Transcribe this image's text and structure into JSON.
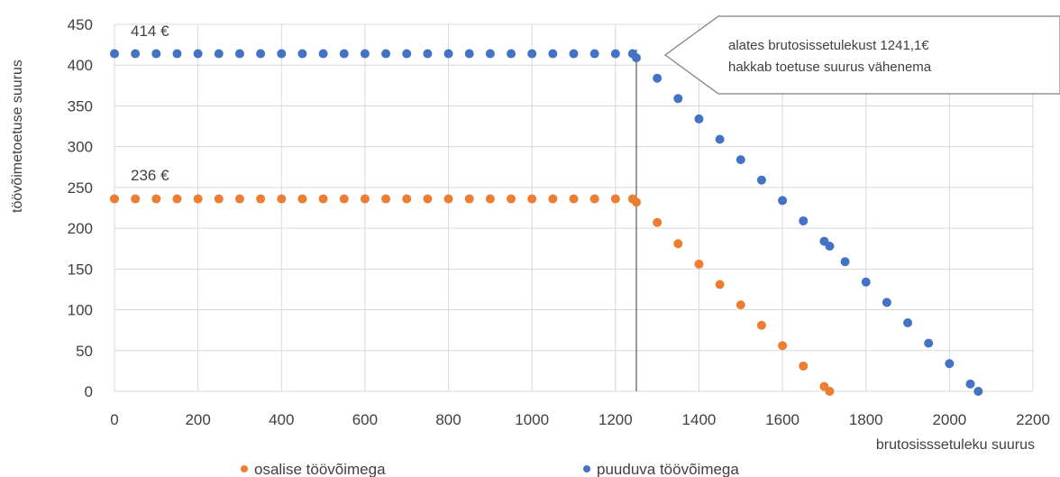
{
  "chart_data": {
    "type": "scatter",
    "xlabel": "brutosisssetuleku suurus",
    "ylabel": "töövõimetoetuse suurus",
    "xlim": [
      0,
      2200
    ],
    "ylim": [
      0,
      450
    ],
    "xticks": [
      0,
      200,
      400,
      600,
      800,
      1000,
      1200,
      1400,
      1600,
      1800,
      2000,
      2200
    ],
    "yticks": [
      0,
      50,
      100,
      150,
      200,
      250,
      300,
      350,
      400,
      450
    ],
    "grid": true,
    "legend_position": "bottom",
    "reference_line_x": 1250,
    "annotations": {
      "label_414": "414 €",
      "label_236": "236 €",
      "callout": [
        "alates brutosissetulekust 1241,1€",
        "hakkab toetuse suurus vähenema"
      ]
    },
    "series": [
      {
        "name": "osalise töövõimega",
        "color": "#ed7d31",
        "points": [
          [
            0,
            236
          ],
          [
            50,
            236
          ],
          [
            100,
            236
          ],
          [
            150,
            236
          ],
          [
            200,
            236
          ],
          [
            250,
            236
          ],
          [
            300,
            236
          ],
          [
            350,
            236
          ],
          [
            400,
            236
          ],
          [
            450,
            236
          ],
          [
            500,
            236
          ],
          [
            550,
            236
          ],
          [
            600,
            236
          ],
          [
            650,
            236
          ],
          [
            700,
            236
          ],
          [
            750,
            236
          ],
          [
            800,
            236
          ],
          [
            850,
            236
          ],
          [
            900,
            236
          ],
          [
            950,
            236
          ],
          [
            1000,
            236
          ],
          [
            1050,
            236
          ],
          [
            1100,
            236
          ],
          [
            1150,
            236
          ],
          [
            1200,
            236
          ],
          [
            1241,
            236
          ],
          [
            1250,
            232
          ],
          [
            1300,
            207
          ],
          [
            1350,
            181
          ],
          [
            1400,
            156
          ],
          [
            1450,
            131
          ],
          [
            1500,
            106
          ],
          [
            1550,
            81
          ],
          [
            1600,
            56
          ],
          [
            1650,
            31
          ],
          [
            1700,
            6
          ],
          [
            1713,
            0
          ]
        ]
      },
      {
        "name": "puuduva töövõimega",
        "color": "#4472c4",
        "points": [
          [
            0,
            414
          ],
          [
            50,
            414
          ],
          [
            100,
            414
          ],
          [
            150,
            414
          ],
          [
            200,
            414
          ],
          [
            250,
            414
          ],
          [
            300,
            414
          ],
          [
            350,
            414
          ],
          [
            400,
            414
          ],
          [
            450,
            414
          ],
          [
            500,
            414
          ],
          [
            550,
            414
          ],
          [
            600,
            414
          ],
          [
            650,
            414
          ],
          [
            700,
            414
          ],
          [
            750,
            414
          ],
          [
            800,
            414
          ],
          [
            850,
            414
          ],
          [
            900,
            414
          ],
          [
            950,
            414
          ],
          [
            1000,
            414
          ],
          [
            1050,
            414
          ],
          [
            1100,
            414
          ],
          [
            1150,
            414
          ],
          [
            1200,
            414
          ],
          [
            1241,
            414
          ],
          [
            1250,
            409
          ],
          [
            1300,
            384
          ],
          [
            1350,
            359
          ],
          [
            1400,
            334
          ],
          [
            1450,
            309
          ],
          [
            1500,
            284
          ],
          [
            1550,
            259
          ],
          [
            1600,
            234
          ],
          [
            1650,
            209
          ],
          [
            1700,
            184
          ],
          [
            1713,
            178
          ],
          [
            1750,
            159
          ],
          [
            1800,
            134
          ],
          [
            1850,
            109
          ],
          [
            1900,
            84
          ],
          [
            1950,
            59
          ],
          [
            2000,
            34
          ],
          [
            2050,
            9
          ],
          [
            2069,
            0
          ]
        ]
      }
    ]
  }
}
